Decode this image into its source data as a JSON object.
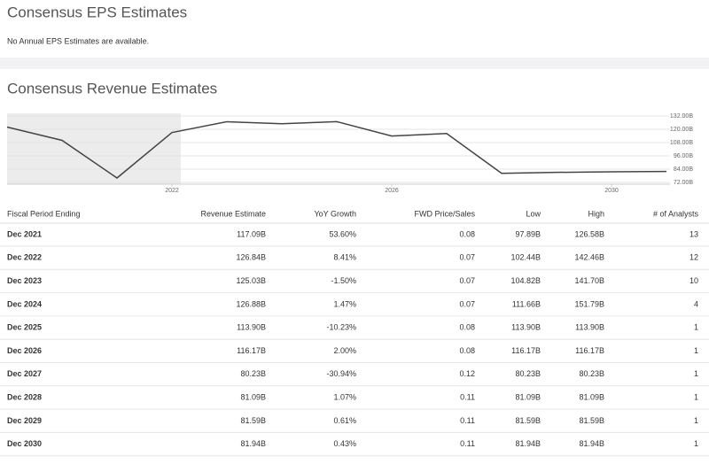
{
  "eps_section": {
    "title": "Consensus EPS Estimates",
    "message": "No Annual EPS Estimates are available."
  },
  "revenue_section": {
    "title": "Consensus Revenue Estimates",
    "chart": {
      "type": "line",
      "color": "#444444",
      "x": [
        2019,
        2020,
        2021,
        2022,
        2023,
        2024,
        2025,
        2026,
        2027,
        2028,
        2029,
        2030,
        2031
      ],
      "values": [
        122,
        110,
        76,
        117.09,
        126.84,
        125.03,
        126.88,
        113.9,
        116.17,
        80.23,
        81.09,
        81.59,
        81.94
      ],
      "xlim": [
        2019,
        2031
      ],
      "xticks": [
        2022,
        2026,
        2030
      ],
      "ylim": [
        72,
        132
      ],
      "yticks": [
        {
          "value": 132,
          "label": "132.00B"
        },
        {
          "value": 120,
          "label": "120.00B"
        },
        {
          "value": 108,
          "label": "108.00B"
        },
        {
          "value": 96,
          "label": "96.00B"
        },
        {
          "value": 84,
          "label": "84.00B"
        },
        {
          "value": 72,
          "label": "72.00B"
        }
      ]
    }
  },
  "table": {
    "columns": [
      "Fiscal Period Ending",
      "Revenue Estimate",
      "YoY Growth",
      "FWD Price/Sales",
      "Low",
      "High",
      "# of Analysts"
    ],
    "rows": [
      [
        "Dec 2021",
        "117.09B",
        "53.60%",
        "0.08",
        "97.89B",
        "126.58B",
        "13"
      ],
      [
        "Dec 2022",
        "126.84B",
        "8.41%",
        "0.07",
        "102.44B",
        "142.46B",
        "12"
      ],
      [
        "Dec 2023",
        "125.03B",
        "-1.50%",
        "0.07",
        "104.82B",
        "141.70B",
        "10"
      ],
      [
        "Dec 2024",
        "126.88B",
        "1.47%",
        "0.07",
        "111.66B",
        "151.79B",
        "4"
      ],
      [
        "Dec 2025",
        "113.90B",
        "-10.23%",
        "0.08",
        "113.90B",
        "113.90B",
        "1"
      ],
      [
        "Dec 2026",
        "116.17B",
        "2.00%",
        "0.08",
        "116.17B",
        "116.17B",
        "1"
      ],
      [
        "Dec 2027",
        "80.23B",
        "-30.94%",
        "0.12",
        "80.23B",
        "80.23B",
        "1"
      ],
      [
        "Dec 2028",
        "81.09B",
        "1.07%",
        "0.11",
        "81.09B",
        "81.09B",
        "1"
      ],
      [
        "Dec 2029",
        "81.59B",
        "0.61%",
        "0.11",
        "81.59B",
        "81.59B",
        "1"
      ],
      [
        "Dec 2030",
        "81.94B",
        "0.43%",
        "0.11",
        "81.94B",
        "81.94B",
        "1"
      ]
    ]
  }
}
